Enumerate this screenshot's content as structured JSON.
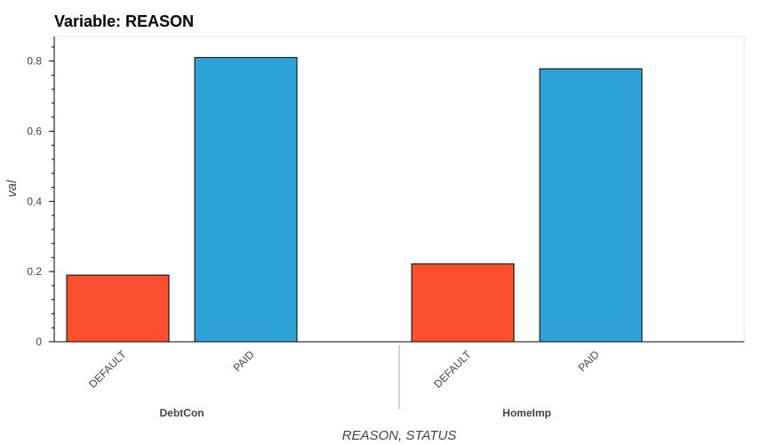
{
  "chart_data": {
    "type": "bar",
    "title": "Variable: REASON",
    "xlabel": "REASON, STATUS",
    "ylabel": "val",
    "ylim": [
      0,
      0.87
    ],
    "yticks": [
      "0",
      "0.2",
      "0.4",
      "0.6",
      "0.8"
    ],
    "grid": false,
    "groups": [
      {
        "name": "DebtCon",
        "bars": [
          {
            "category": "DEFAULT",
            "value": 0.19,
            "color": "#fc4f30"
          },
          {
            "category": "PAID",
            "value": 0.81,
            "color": "#30a2da"
          }
        ]
      },
      {
        "name": "HomeImp",
        "bars": [
          {
            "category": "DEFAULT",
            "value": 0.222,
            "color": "#fc4f30"
          },
          {
            "category": "PAID",
            "value": 0.778,
            "color": "#30a2da"
          }
        ]
      }
    ],
    "colors": {
      "DEFAULT": "#fc4f30",
      "PAID": "#30a2da"
    }
  }
}
